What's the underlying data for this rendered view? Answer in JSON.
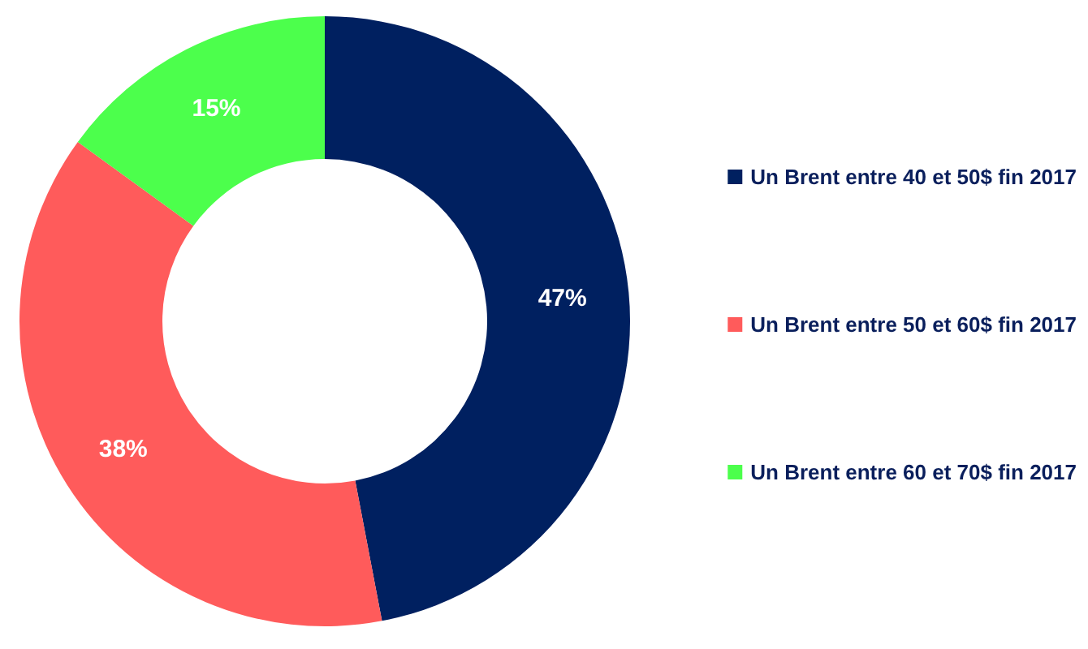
{
  "chart_data": {
    "type": "donut",
    "categories": [
      "Un Brent entre 40 et 50$ fin 2017",
      "Un Brent entre 50 et 60$ fin 2017",
      "Un Brent entre 60 et 70$ fin 2017"
    ],
    "values": [
      47,
      38,
      15
    ],
    "colors": [
      "#002060",
      "#ff5b5b",
      "#4cff4c"
    ],
    "legend": "right",
    "value_labels": [
      "47%",
      "38%",
      "15%"
    ]
  }
}
